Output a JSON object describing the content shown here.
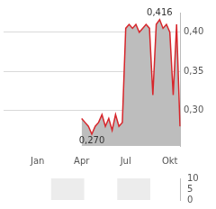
{
  "chart_data": [
    {
      "type": "line",
      "color": "#d7262b",
      "grid": true,
      "categories": [
        null,
        null,
        null,
        null,
        null,
        null,
        null,
        null,
        null,
        null,
        "Jan",
        null,
        null,
        null,
        null,
        null,
        null,
        null,
        null,
        null,
        null,
        null,
        null,
        "Apr",
        null,
        null,
        null,
        null,
        null,
        null,
        null,
        null,
        null,
        null,
        null,
        null,
        "Jul",
        null,
        null,
        null,
        null,
        null,
        null,
        null,
        null,
        null,
        null,
        null,
        null,
        "Okt",
        null,
        null,
        null
      ],
      "values": [
        null,
        null,
        null,
        null,
        null,
        null,
        null,
        null,
        null,
        null,
        null,
        null,
        null,
        null,
        null,
        null,
        null,
        null,
        null,
        null,
        null,
        null,
        null,
        0.29,
        0.285,
        0.28,
        0.27,
        0.28,
        0.285,
        0.295,
        0.28,
        0.29,
        0.275,
        0.295,
        0.28,
        0.285,
        0.405,
        0.41,
        0.405,
        0.41,
        0.4,
        0.405,
        0.41,
        0.405,
        0.32,
        0.41,
        0.416,
        0.405,
        0.41,
        0.4,
        0.32,
        0.41,
        0.28
      ],
      "ylim": [
        0.255,
        0.425
      ],
      "yticks": [
        {
          "value": 0.3,
          "label": "0,30"
        },
        {
          "value": 0.35,
          "label": "0,35"
        },
        {
          "value": 0.4,
          "label": "0,40"
        }
      ],
      "annotations": [
        {
          "text": "0,416",
          "index": 46,
          "value": 0.416
        },
        {
          "text": "0,270",
          "index": 26,
          "value": 0.27
        }
      ]
    },
    {
      "type": "bar",
      "grid": false,
      "tick_labels": "y",
      "ylim": [
        0,
        10
      ],
      "yticks": [
        0,
        5,
        10
      ]
    }
  ]
}
